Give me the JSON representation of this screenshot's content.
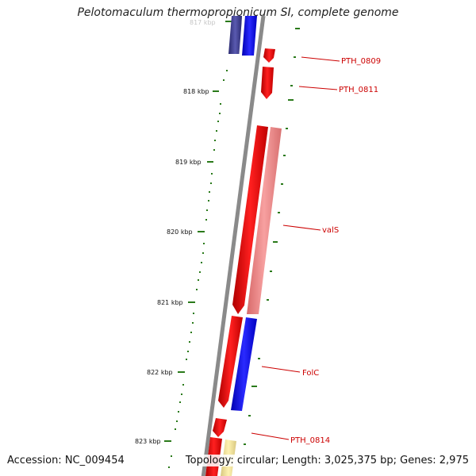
{
  "title": "Pelotomaculum thermopropionicum SI, complete genome",
  "footer": {
    "accession": "Accession: NC_009454",
    "stats": "Topology: circular; Length: 3,025,375 bp; Genes: 2,975"
  },
  "ticks": [
    {
      "label": "817 kbp"
    },
    {
      "label": "818 kbp"
    },
    {
      "label": "819 kbp"
    },
    {
      "label": "820 kbp"
    },
    {
      "label": "821 kbp"
    },
    {
      "label": "822 kbp"
    },
    {
      "label": "823 kbp"
    }
  ],
  "genes": [
    {
      "label": "PTH_0809"
    },
    {
      "label": "PTH_0811"
    },
    {
      "label": "valS"
    },
    {
      "label": "FolC"
    },
    {
      "label": "PTH_0814"
    }
  ],
  "colors": {
    "gene": "#ff0000",
    "rna": "#ee8888",
    "blue": "#0000ff",
    "navy": "#3a3a8a",
    "tick": "#2a7a1a",
    "label": "#cc0000",
    "backbone": "#888888"
  }
}
